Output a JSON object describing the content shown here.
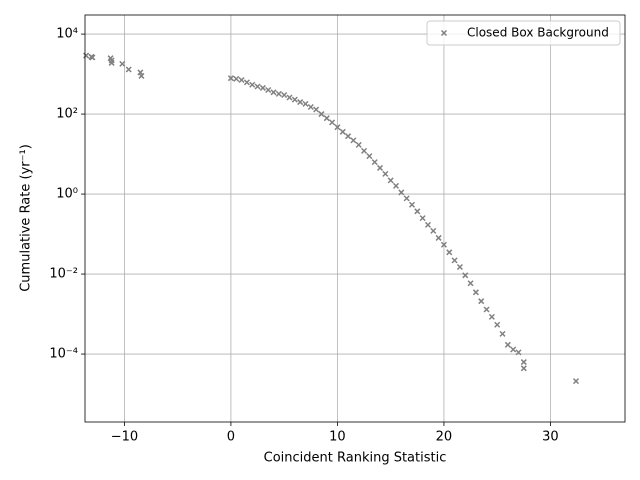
{
  "chart_data": {
    "type": "scatter",
    "xlabel": "Coincident Ranking Statistic",
    "ylabel": "Cumulative Rate (yr⁻¹)",
    "xlim": [
      -13.7,
      37
    ],
    "ylim": [
      2e-06,
      30000
    ],
    "log_y": true,
    "grid": true,
    "legend": "upper right",
    "xticks": [
      {
        "value": -10,
        "label": "−10"
      },
      0,
      10,
      20,
      30
    ],
    "yticks": [
      {
        "value": 0.0001,
        "label": "10⁻⁴"
      },
      {
        "value": 0.01,
        "label": "10⁻²"
      },
      {
        "value": 1,
        "label": "10⁰"
      },
      {
        "value": 100,
        "label": "10²"
      },
      {
        "value": 10000,
        "label": "10⁴"
      }
    ],
    "series": [
      {
        "name": "Closed Box Background",
        "color": "#808080",
        "marker": "x",
        "x": [
          -13.6,
          -13.1,
          -13,
          -11.3,
          -11.2,
          -11.2,
          -10.2,
          -9.6,
          -8.5,
          -8.4,
          0,
          0.5,
          1,
          1.5,
          2,
          2.5,
          3,
          3.5,
          4,
          4.5,
          5,
          5.5,
          6,
          6.5,
          7,
          7.5,
          8,
          8.5,
          9,
          9.5,
          10,
          10.5,
          11,
          11.5,
          12,
          12.5,
          13,
          13.5,
          14,
          14.5,
          15,
          15.5,
          16,
          16.5,
          17,
          17.5,
          18,
          18.5,
          19,
          19.5,
          20,
          20.5,
          21,
          21.5,
          22,
          22.5,
          23,
          23.5,
          24,
          24.5,
          25,
          25.5,
          26,
          26.5,
          27,
          27.5,
          27.5,
          32.4
        ],
        "values": [
          2900,
          2700,
          2600,
          2500,
          2200,
          1900,
          1800,
          1300,
          1100,
          900,
          790,
          760,
          710,
          620,
          540,
          490,
          450,
          400,
          350,
          320,
          300,
          260,
          230,
          200,
          180,
          150,
          130,
          100,
          79,
          62,
          47,
          36,
          28,
          22,
          17,
          12,
          8.9,
          6.3,
          4.5,
          3.2,
          2.2,
          1.6,
          1.1,
          0.78,
          0.54,
          0.37,
          0.25,
          0.17,
          0.12,
          0.08,
          0.054,
          0.035,
          0.022,
          0.015,
          0.0093,
          0.0059,
          0.0035,
          0.0021,
          0.0013,
          0.00085,
          0.00054,
          0.00032,
          0.00017,
          0.00013,
          0.00011,
          6.3e-05,
          4.4e-05,
          2.1e-05
        ]
      }
    ]
  }
}
